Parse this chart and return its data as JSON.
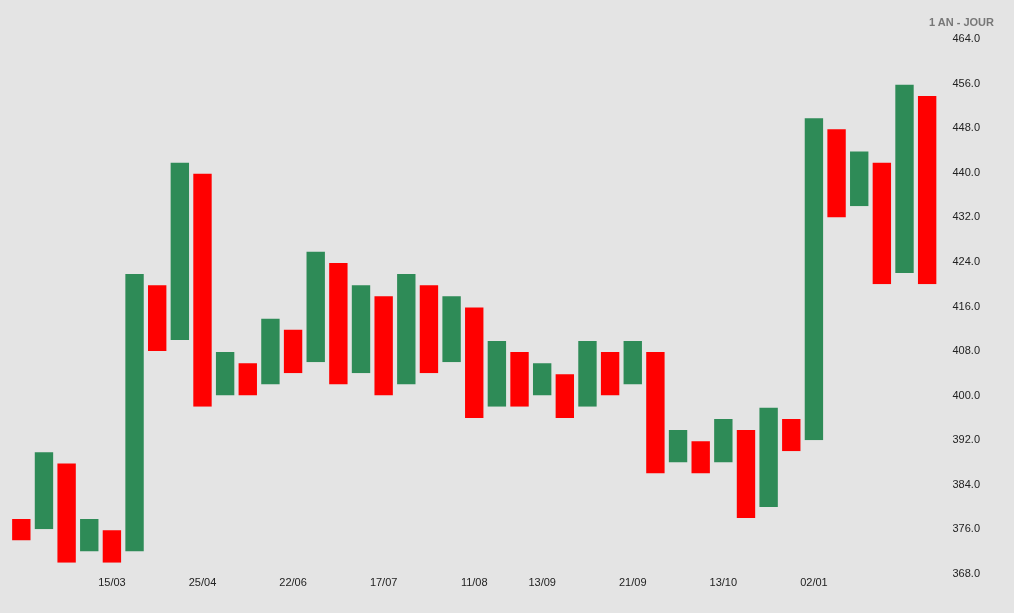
{
  "chart_data": {
    "type": "bar",
    "subtitle": "1 AN - JOUR",
    "categories": [
      null,
      null,
      null,
      null,
      "15/03",
      null,
      null,
      null,
      "25/04",
      null,
      null,
      null,
      "22/06",
      null,
      null,
      null,
      "17/07",
      null,
      null,
      null,
      "11/08",
      null,
      null,
      "13/09",
      null,
      null,
      null,
      "21/09",
      null,
      null,
      null,
      "13/10",
      null,
      null,
      null,
      "02/01",
      null,
      null,
      null,
      null,
      null
    ],
    "series": [
      {
        "color": "#2e8b57",
        "base": [
          null,
          376,
          null,
          372,
          null,
          372,
          null,
          410,
          null,
          400,
          null,
          402,
          null,
          406,
          null,
          404,
          null,
          402,
          null,
          406,
          null,
          398,
          null,
          400,
          null,
          398,
          null,
          402,
          null,
          388,
          null,
          388,
          null,
          380,
          null,
          392,
          null,
          434,
          null,
          422,
          null
        ],
        "values": [
          null,
          14,
          null,
          6,
          null,
          50,
          null,
          32,
          null,
          8,
          null,
          12,
          null,
          20,
          null,
          16,
          null,
          20,
          null,
          12,
          null,
          12,
          null,
          6,
          null,
          12,
          null,
          8,
          null,
          6,
          null,
          8,
          null,
          18,
          null,
          58,
          null,
          10,
          null,
          34,
          null
        ]
      },
      {
        "color": "#ff0000",
        "base": [
          374,
          null,
          370,
          null,
          370,
          null,
          408,
          null,
          398,
          null,
          400,
          null,
          404,
          null,
          402,
          null,
          400,
          null,
          404,
          null,
          396,
          null,
          398,
          null,
          396,
          null,
          400,
          null,
          386,
          null,
          386,
          null,
          378,
          null,
          390,
          null,
          432,
          null,
          420,
          null,
          420
        ],
        "values": [
          4,
          null,
          18,
          null,
          6,
          null,
          12,
          null,
          42,
          null,
          6,
          null,
          8,
          null,
          22,
          null,
          18,
          null,
          16,
          null,
          20,
          null,
          10,
          null,
          8,
          null,
          8,
          null,
          22,
          null,
          6,
          null,
          16,
          null,
          6,
          null,
          16,
          null,
          22,
          null,
          34
        ]
      }
    ],
    "ylim": [
      368,
      464
    ],
    "yticks": [
      {
        "value": 368,
        "label": "368.0"
      },
      {
        "value": 376,
        "label": "376.0"
      },
      {
        "value": 384,
        "label": "384.0"
      },
      {
        "value": 392,
        "label": "392.0"
      },
      {
        "value": 400,
        "label": "400.0"
      },
      {
        "value": 408,
        "label": "408.0"
      },
      {
        "value": 416,
        "label": "416.0"
      },
      {
        "value": 424,
        "label": "424.0"
      },
      {
        "value": 432,
        "label": "432.0"
      },
      {
        "value": 440,
        "label": "440.0"
      },
      {
        "value": 448,
        "label": "448.0"
      },
      {
        "value": 456,
        "label": "456.0"
      },
      {
        "value": 464,
        "label": "464.0"
      }
    ],
    "grid": false,
    "legend": false
  }
}
